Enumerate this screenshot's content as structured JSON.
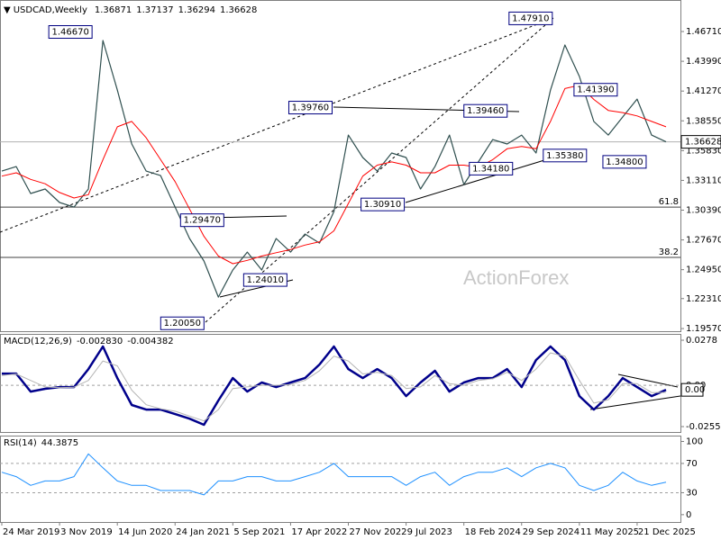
{
  "chart_data": [
    {
      "type": "line",
      "symbol": "USDCAD,Weekly",
      "ohlc": [
        1.36871,
        1.37137,
        1.36294,
        1.36628
      ],
      "watermark": "ActionForex",
      "x": [
        0,
        8,
        16,
        24,
        32,
        40,
        48,
        56,
        64,
        72,
        80,
        88,
        96,
        104,
        112,
        120,
        128,
        136,
        144,
        152,
        160,
        168,
        176,
        184,
        192,
        200,
        208,
        216,
        224,
        232,
        240,
        248,
        256,
        264,
        272,
        280,
        288,
        296,
        304,
        312,
        320,
        328,
        336,
        344,
        352,
        360,
        368
      ],
      "series": [
        {
          "color": "#2f4f4f",
          "values": [
            1.3396,
            1.3437,
            1.3191,
            1.3232,
            1.3109,
            1.3067,
            1.3232,
            1.4589,
            1.4136,
            1.3643,
            1.3396,
            1.3355,
            1.3067,
            1.278,
            1.2574,
            1.2245,
            1.2492,
            1.2656,
            1.2492,
            1.278,
            1.2656,
            1.2821,
            1.2738,
            1.3026,
            1.3725,
            1.352,
            1.3396,
            1.3561,
            1.352,
            1.3232,
            1.3437,
            1.3725,
            1.3273,
            1.3479,
            1.3684,
            1.3643,
            1.3725,
            1.3561,
            1.4136,
            1.4548,
            1.426,
            1.3849,
            1.3725,
            1.389,
            1.4054,
            1.3725,
            1.36628
          ]
        },
        {
          "color": "#ff0000",
          "values": [
            1.335,
            1.338,
            1.332,
            1.328,
            1.32,
            1.315,
            1.318,
            1.35,
            1.38,
            1.385,
            1.37,
            1.35,
            1.33,
            1.305,
            1.28,
            1.262,
            1.255,
            1.258,
            1.262,
            1.265,
            1.268,
            1.272,
            1.275,
            1.285,
            1.31,
            1.335,
            1.345,
            1.348,
            1.345,
            1.338,
            1.338,
            1.345,
            1.345,
            1.343,
            1.35,
            1.36,
            1.362,
            1.36,
            1.385,
            1.415,
            1.418,
            1.405,
            1.395,
            1.393,
            1.39,
            1.385,
            1.38
          ]
        }
      ],
      "annotations": [
        {
          "x": 51,
          "value": 1.4667,
          "label": "1.46670"
        },
        {
          "x": 306,
          "value": 1.4791,
          "label": "1.47910"
        },
        {
          "x": 184,
          "value": 1.3976,
          "label": "1.39760"
        },
        {
          "x": 281,
          "value": 1.3946,
          "label": "1.39460"
        },
        {
          "x": 342,
          "value": 1.4139,
          "label": "1.41390"
        },
        {
          "x": 299,
          "value": 1.3538,
          "label": "1.35380"
        },
        {
          "x": 284,
          "value": 1.3418,
          "label": "1.34180"
        },
        {
          "x": 358,
          "value": 1.348,
          "label": "1.34800"
        },
        {
          "x": 224,
          "value": 1.3091,
          "label": "1.30910"
        },
        {
          "x": 124,
          "value": 1.2947,
          "label": "1.29470"
        },
        {
          "x": 133,
          "value": 1.2401,
          "label": "1.24010"
        },
        {
          "x": 113,
          "value": 1.2005,
          "label": "1.20050"
        }
      ],
      "levels": [
        {
          "label": "61.8",
          "value": 1.3067
        },
        {
          "label": "38.2",
          "value": 1.2607
        }
      ],
      "xlim": [
        -1,
        376
      ],
      "xticks": [
        {
          "value": 0,
          "label": "24 Mar 2019"
        },
        {
          "value": 32,
          "label": "3 Nov 2019"
        },
        {
          "value": 64,
          "label": "14 Jun 2020"
        },
        {
          "value": 96,
          "label": "24 Jan 2021"
        },
        {
          "value": 128,
          "label": "5 Sep 2021"
        },
        {
          "value": 160,
          "label": "17 Apr 2022"
        },
        {
          "value": 192,
          "label": "27 Nov 2022"
        },
        {
          "value": 224,
          "label": "9 Jul 2023"
        },
        {
          "value": 256,
          "label": "18 Feb 2024"
        },
        {
          "value": 288,
          "label": "29 Sep 2024"
        },
        {
          "value": 320,
          "label": "11 May 2025"
        },
        {
          "value": 352,
          "label": "21 Dec 2025"
        }
      ],
      "ylim": [
        1.1933,
        1.4959
      ],
      "yticks": [
        {
          "value": 1.4671,
          "label": "1.46710"
        },
        {
          "value": 1.4399,
          "label": "1.43990"
        },
        {
          "value": 1.4127,
          "label": "1.41270"
        },
        {
          "value": 1.3855,
          "label": "1.38550"
        },
        {
          "value": 1.3583,
          "label": "1.35830"
        },
        {
          "value": 1.3311,
          "label": "1.33110"
        },
        {
          "value": 1.3039,
          "label": "1.30390"
        },
        {
          "value": 1.2767,
          "label": "1.27670"
        },
        {
          "value": 1.2495,
          "label": "1.24950"
        },
        {
          "value": 1.2231,
          "label": "1.22310"
        },
        {
          "value": 1.1957,
          "label": "1.19570"
        }
      ]
    },
    {
      "type": "macd",
      "name": "MACD(12,26,9)",
      "header_values": [
        {
          "value": -0.00283,
          "label": "-0.002830"
        },
        -0.004382
      ],
      "current": {
        "value": -0.00283,
        "label": "0.00"
      },
      "x": [
        0,
        8,
        16,
        24,
        32,
        40,
        48,
        56,
        64,
        72,
        80,
        88,
        96,
        104,
        112,
        120,
        128,
        136,
        144,
        152,
        160,
        168,
        176,
        184,
        192,
        200,
        208,
        216,
        224,
        232,
        240,
        248,
        256,
        264,
        272,
        280,
        288,
        296,
        304,
        312,
        320,
        328,
        336,
        344,
        352,
        360,
        368
      ],
      "series": [
        {
          "color": "#00008b",
          "values": [
            0.0072,
            0.0072,
            -0.0039,
            -0.0022,
            -0.0011,
            -0.0011,
            0.01,
            0.0239,
            0.0044,
            -0.0122,
            -0.015,
            -0.015,
            -0.0178,
            -0.0206,
            -0.0244,
            -0.0094,
            0.0044,
            -0.0039,
            0.0017,
            -0.0011,
            0.0017,
            0.0044,
            0.0128,
            0.0239,
            0.01,
            0.0044,
            0.01,
            0.0044,
            -0.0067,
            0.0017,
            0.0089,
            -0.0039,
            0.0017,
            0.0044,
            0.0044,
            0.01,
            -0.0011,
            0.0156,
            0.0239,
            0.0156,
            -0.0067,
            -0.015,
            -0.0067,
            0.0044,
            -0.0011,
            -0.0067,
            -0.00283
          ]
        },
        {
          "color": "#b4b4b4",
          "values": [
            0.006,
            0.007,
            0.003,
            -0.001,
            -0.0015,
            -0.0012,
            0.003,
            0.015,
            0.012,
            -0.003,
            -0.012,
            -0.0145,
            -0.016,
            -0.019,
            -0.022,
            -0.015,
            -0.002,
            -0.001,
            0.0,
            0.0,
            0.0005,
            0.003,
            0.009,
            0.018,
            0.015,
            0.007,
            0.008,
            0.006,
            -0.002,
            -0.001,
            0.006,
            0.001,
            0.0,
            0.003,
            0.004,
            0.008,
            0.003,
            0.01,
            0.02,
            0.018,
            0.003,
            -0.011,
            -0.009,
            0.001,
            0.001,
            -0.0045,
            -0.004382
          ]
        }
      ],
      "xlim": [
        -1,
        376
      ],
      "ylim": [
        -0.0294,
        0.0317
      ],
      "yticks": [
        0.0278,
        {
          "value": 0,
          "label": "0.00"
        },
        -0.025511
      ]
    },
    {
      "type": "rsi",
      "name": "RSI(14)",
      "header_value": 44.3875,
      "x": [
        0,
        8,
        16,
        24,
        32,
        40,
        48,
        56,
        64,
        72,
        80,
        88,
        96,
        104,
        112,
        120,
        128,
        136,
        144,
        152,
        160,
        168,
        176,
        184,
        192,
        200,
        208,
        216,
        224,
        232,
        240,
        248,
        256,
        264,
        272,
        280,
        288,
        296,
        304,
        312,
        320,
        328,
        336,
        344,
        352,
        360,
        368
      ],
      "series": [
        {
          "color": "#1e90ff",
          "values": [
            58,
            52,
            40,
            46,
            46,
            52,
            83,
            64,
            46,
            40,
            40,
            33,
            33,
            33,
            27,
            46,
            46,
            52,
            52,
            46,
            46,
            52,
            58,
            70,
            52,
            52,
            52,
            52,
            40,
            52,
            58,
            40,
            52,
            58,
            58,
            64,
            52,
            64,
            70,
            64,
            40,
            33,
            40,
            58,
            46,
            40,
            44.3875
          ]
        }
      ],
      "levels": [
        70,
        30
      ],
      "xlim": [
        -1,
        376
      ],
      "ylim": [
        -10,
        108
      ],
      "yticks": [
        100,
        70,
        30,
        0
      ]
    }
  ]
}
